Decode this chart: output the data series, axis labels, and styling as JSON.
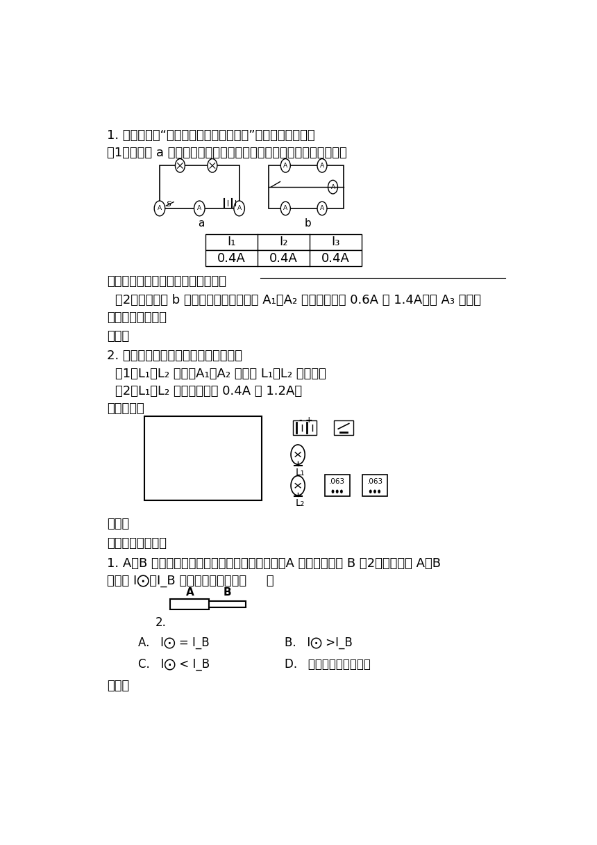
{
  "background_color": "#ffffff",
  "q1_line1": "1. 小明在探究“串、并联电路的电流规律”中做了如下实验：",
  "q1_sub1": "（1）如下图 a 所示的电路连接好电路后，三只电流表的数据如下表：",
  "table_headers": [
    "I₁",
    "I₂",
    "I₃"
  ],
  "table_values": [
    "0.4A",
    "0.4A",
    "0.4A"
  ],
  "conclusion_line": "比较数据可得出结论：在串联电路中",
  "q1_sub2_line1": "（2）如果他按 b 图连接好电路后，测得 A₁、A₂ 的电流分别为 0.6A 和 1.4A，则 A₃ 的电流",
  "q1_sub2_line2": "为＿＿＿＿＿＿。",
  "jiexi1": "解析：",
  "q2_line": "2. 按要求设计电路图，并连接实物图：",
  "q2_sub1": "（1）L₁、L₂ 并联，A₁、A₂ 分别测 L₁、L₂ 的电流；",
  "q2_sub2": "（2）L₁、L₂ 的电流分别为 0.4A 和 1.2A。",
  "circuit_label": "电路设计：",
  "L1_label": "L₁",
  "L2_label": "L₂",
  "jiexi2": "解析：",
  "section_title": "『思维学法训练』",
  "thinking_q1_line1": "1. A、B 是同种材料制成的一段粗细不同的导线，A 的横截面积是 B 的2倍，则通过 A、B",
  "thinking_q1_line2": "的电流 I⨀、I_B 间的关系正确的是（     ）",
  "A_label": "A",
  "B_label": "B",
  "label_2": "2.",
  "option_A": "A.   I⨀ = I_B",
  "option_B": "B.   I⨀ >I_B",
  "option_C": "C.   I⨀ < I_B",
  "option_D": "D.   条件不足，无法判断",
  "jiexi3": "解析："
}
